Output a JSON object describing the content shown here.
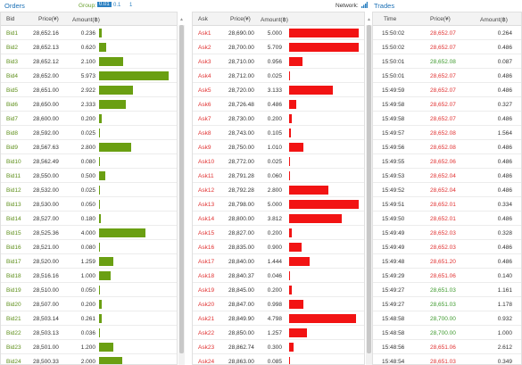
{
  "topbar": {
    "orders_label": "Orders",
    "group_label": "Group:",
    "group_options": [
      "0.01",
      "0.1",
      "1"
    ],
    "network_label": "Network:",
    "trades_label": "Trades"
  },
  "bids": {
    "headers": {
      "bid": "Bid",
      "price": "Price(¥)",
      "amount": "Amount(฿)"
    },
    "max_amount": 6.0,
    "rows": [
      {
        "label": "Bid1",
        "price": "28,652.16",
        "amount": "0.236",
        "value": 0.236
      },
      {
        "label": "Bid2",
        "price": "28,652.13",
        "amount": "0.620",
        "value": 0.62
      },
      {
        "label": "Bid3",
        "price": "28,652.12",
        "amount": "2.100",
        "value": 2.1
      },
      {
        "label": "Bid4",
        "price": "28,652.00",
        "amount": "5.973",
        "value": 5.973
      },
      {
        "label": "Bid5",
        "price": "28,651.00",
        "amount": "2.922",
        "value": 2.922
      },
      {
        "label": "Bid6",
        "price": "28,650.00",
        "amount": "2.333",
        "value": 2.333
      },
      {
        "label": "Bid7",
        "price": "28,600.00",
        "amount": "0.200",
        "value": 0.2
      },
      {
        "label": "Bid8",
        "price": "28,592.00",
        "amount": "0.025",
        "value": 0.025
      },
      {
        "label": "Bid9",
        "price": "28,567.63",
        "amount": "2.800",
        "value": 2.8
      },
      {
        "label": "Bid10",
        "price": "28,562.49",
        "amount": "0.080",
        "value": 0.08
      },
      {
        "label": "Bid11",
        "price": "28,550.00",
        "amount": "0.500",
        "value": 0.5
      },
      {
        "label": "Bid12",
        "price": "28,532.00",
        "amount": "0.025",
        "value": 0.025
      },
      {
        "label": "Bid13",
        "price": "28,530.00",
        "amount": "0.050",
        "value": 0.05
      },
      {
        "label": "Bid14",
        "price": "28,527.00",
        "amount": "0.180",
        "value": 0.18
      },
      {
        "label": "Bid15",
        "price": "28,525.36",
        "amount": "4.000",
        "value": 4.0
      },
      {
        "label": "Bid16",
        "price": "28,521.00",
        "amount": "0.080",
        "value": 0.08
      },
      {
        "label": "Bid17",
        "price": "28,520.00",
        "amount": "1.259",
        "value": 1.259
      },
      {
        "label": "Bid18",
        "price": "28,516.16",
        "amount": "1.000",
        "value": 1.0
      },
      {
        "label": "Bid19",
        "price": "28,510.00",
        "amount": "0.050",
        "value": 0.05
      },
      {
        "label": "Bid20",
        "price": "28,507.00",
        "amount": "0.200",
        "value": 0.2
      },
      {
        "label": "Bid21",
        "price": "28,503.14",
        "amount": "0.261",
        "value": 0.261
      },
      {
        "label": "Bid22",
        "price": "28,503.13",
        "amount": "0.036",
        "value": 0.036
      },
      {
        "label": "Bid23",
        "price": "28,501.00",
        "amount": "1.200",
        "value": 1.2
      },
      {
        "label": "Bid24",
        "price": "28,500.33",
        "amount": "2.000",
        "value": 2.0
      },
      {
        "label": "Bid25",
        "price": "28,500.10",
        "amount": "4.657",
        "value": 4.657
      }
    ]
  },
  "asks": {
    "headers": {
      "ask": "Ask",
      "price": "Price(¥)",
      "amount": "Amount(฿)"
    },
    "max_amount": 5.0,
    "rows": [
      {
        "label": "Ask1",
        "price": "28,690.00",
        "amount": "5.000",
        "value": 5.0
      },
      {
        "label": "Ask2",
        "price": "28,700.00",
        "amount": "5.709",
        "value": 5.709
      },
      {
        "label": "Ask3",
        "price": "28,710.00",
        "amount": "0.956",
        "value": 0.956
      },
      {
        "label": "Ask4",
        "price": "28,712.00",
        "amount": "0.025",
        "value": 0.025
      },
      {
        "label": "Ask5",
        "price": "28,720.00",
        "amount": "3.133",
        "value": 3.133
      },
      {
        "label": "Ask6",
        "price": "28,726.48",
        "amount": "0.486",
        "value": 0.486
      },
      {
        "label": "Ask7",
        "price": "28,730.00",
        "amount": "0.200",
        "value": 0.2
      },
      {
        "label": "Ask8",
        "price": "28,743.00",
        "amount": "0.105",
        "value": 0.105
      },
      {
        "label": "Ask9",
        "price": "28,750.00",
        "amount": "1.010",
        "value": 1.01
      },
      {
        "label": "Ask10",
        "price": "28,772.00",
        "amount": "0.025",
        "value": 0.025
      },
      {
        "label": "Ask11",
        "price": "28,791.28",
        "amount": "0.060",
        "value": 0.06
      },
      {
        "label": "Ask12",
        "price": "28,792.28",
        "amount": "2.800",
        "value": 2.8
      },
      {
        "label": "Ask13",
        "price": "28,798.00",
        "amount": "5.000",
        "value": 5.0
      },
      {
        "label": "Ask14",
        "price": "28,800.00",
        "amount": "3.812",
        "value": 3.812
      },
      {
        "label": "Ask15",
        "price": "28,827.00",
        "amount": "0.200",
        "value": 0.2
      },
      {
        "label": "Ask16",
        "price": "28,835.00",
        "amount": "0.900",
        "value": 0.9
      },
      {
        "label": "Ask17",
        "price": "28,840.00",
        "amount": "1.444",
        "value": 1.444
      },
      {
        "label": "Ask18",
        "price": "28,840.37",
        "amount": "0.046",
        "value": 0.046
      },
      {
        "label": "Ask19",
        "price": "28,845.00",
        "amount": "0.200",
        "value": 0.2
      },
      {
        "label": "Ask20",
        "price": "28,847.00",
        "amount": "0.998",
        "value": 0.998
      },
      {
        "label": "Ask21",
        "price": "28,849.90",
        "amount": "4.798",
        "value": 4.798
      },
      {
        "label": "Ask22",
        "price": "28,850.00",
        "amount": "1.257",
        "value": 1.257
      },
      {
        "label": "Ask23",
        "price": "28,862.74",
        "amount": "0.300",
        "value": 0.3
      },
      {
        "label": "Ask24",
        "price": "28,863.00",
        "amount": "0.085",
        "value": 0.085
      },
      {
        "label": "Ask25",
        "price": "28,864.00",
        "amount": "28.047",
        "value": 28.047
      }
    ]
  },
  "trades": {
    "headers": {
      "time": "Time",
      "price": "Price(¥)",
      "amount": "Amount(฿)"
    },
    "rows": [
      {
        "time": "15:50:02",
        "price": "28,652.07",
        "amount": "0.264",
        "side": "sell"
      },
      {
        "time": "15:50:02",
        "price": "28,652.07",
        "amount": "0.486",
        "side": "sell"
      },
      {
        "time": "15:50:01",
        "price": "28,652.08",
        "amount": "0.087",
        "side": "buy"
      },
      {
        "time": "15:50:01",
        "price": "28,652.07",
        "amount": "0.486",
        "side": "sell"
      },
      {
        "time": "15:49:59",
        "price": "28,652.07",
        "amount": "0.486",
        "side": "sell"
      },
      {
        "time": "15:49:58",
        "price": "28,652.07",
        "amount": "0.327",
        "side": "sell"
      },
      {
        "time": "15:49:58",
        "price": "28,652.07",
        "amount": "0.486",
        "side": "sell"
      },
      {
        "time": "15:49:57",
        "price": "28,652.08",
        "amount": "1.564",
        "side": "sell"
      },
      {
        "time": "15:49:56",
        "price": "28,652.08",
        "amount": "0.486",
        "side": "sell"
      },
      {
        "time": "15:49:55",
        "price": "28,652.06",
        "amount": "0.486",
        "side": "sell"
      },
      {
        "time": "15:49:53",
        "price": "28,652.04",
        "amount": "0.486",
        "side": "sell"
      },
      {
        "time": "15:49:52",
        "price": "28,652.04",
        "amount": "0.486",
        "side": "sell"
      },
      {
        "time": "15:49:51",
        "price": "28,652.01",
        "amount": "0.334",
        "side": "sell"
      },
      {
        "time": "15:49:50",
        "price": "28,652.01",
        "amount": "0.486",
        "side": "sell"
      },
      {
        "time": "15:49:49",
        "price": "28,652.03",
        "amount": "0.328",
        "side": "sell"
      },
      {
        "time": "15:49:49",
        "price": "28,652.03",
        "amount": "0.486",
        "side": "sell"
      },
      {
        "time": "15:49:48",
        "price": "28,651.20",
        "amount": "0.486",
        "side": "sell"
      },
      {
        "time": "15:49:29",
        "price": "28,651.06",
        "amount": "0.140",
        "side": "sell"
      },
      {
        "time": "15:49:27",
        "price": "28,651.03",
        "amount": "1.161",
        "side": "buy"
      },
      {
        "time": "15:49:27",
        "price": "28,651.03",
        "amount": "1.178",
        "side": "buy"
      },
      {
        "time": "15:48:58",
        "price": "28,700.00",
        "amount": "0.932",
        "side": "buy"
      },
      {
        "time": "15:48:58",
        "price": "28,700.00",
        "amount": "1.000",
        "side": "buy"
      },
      {
        "time": "15:48:56",
        "price": "28,651.06",
        "amount": "2.612",
        "side": "sell"
      },
      {
        "time": "15:48:54",
        "price": "28,651.03",
        "amount": "0.349",
        "side": "sell"
      },
      {
        "time": "15:48:52",
        "price": "28,700.00",
        "amount": "0.795",
        "side": "buy"
      }
    ]
  }
}
